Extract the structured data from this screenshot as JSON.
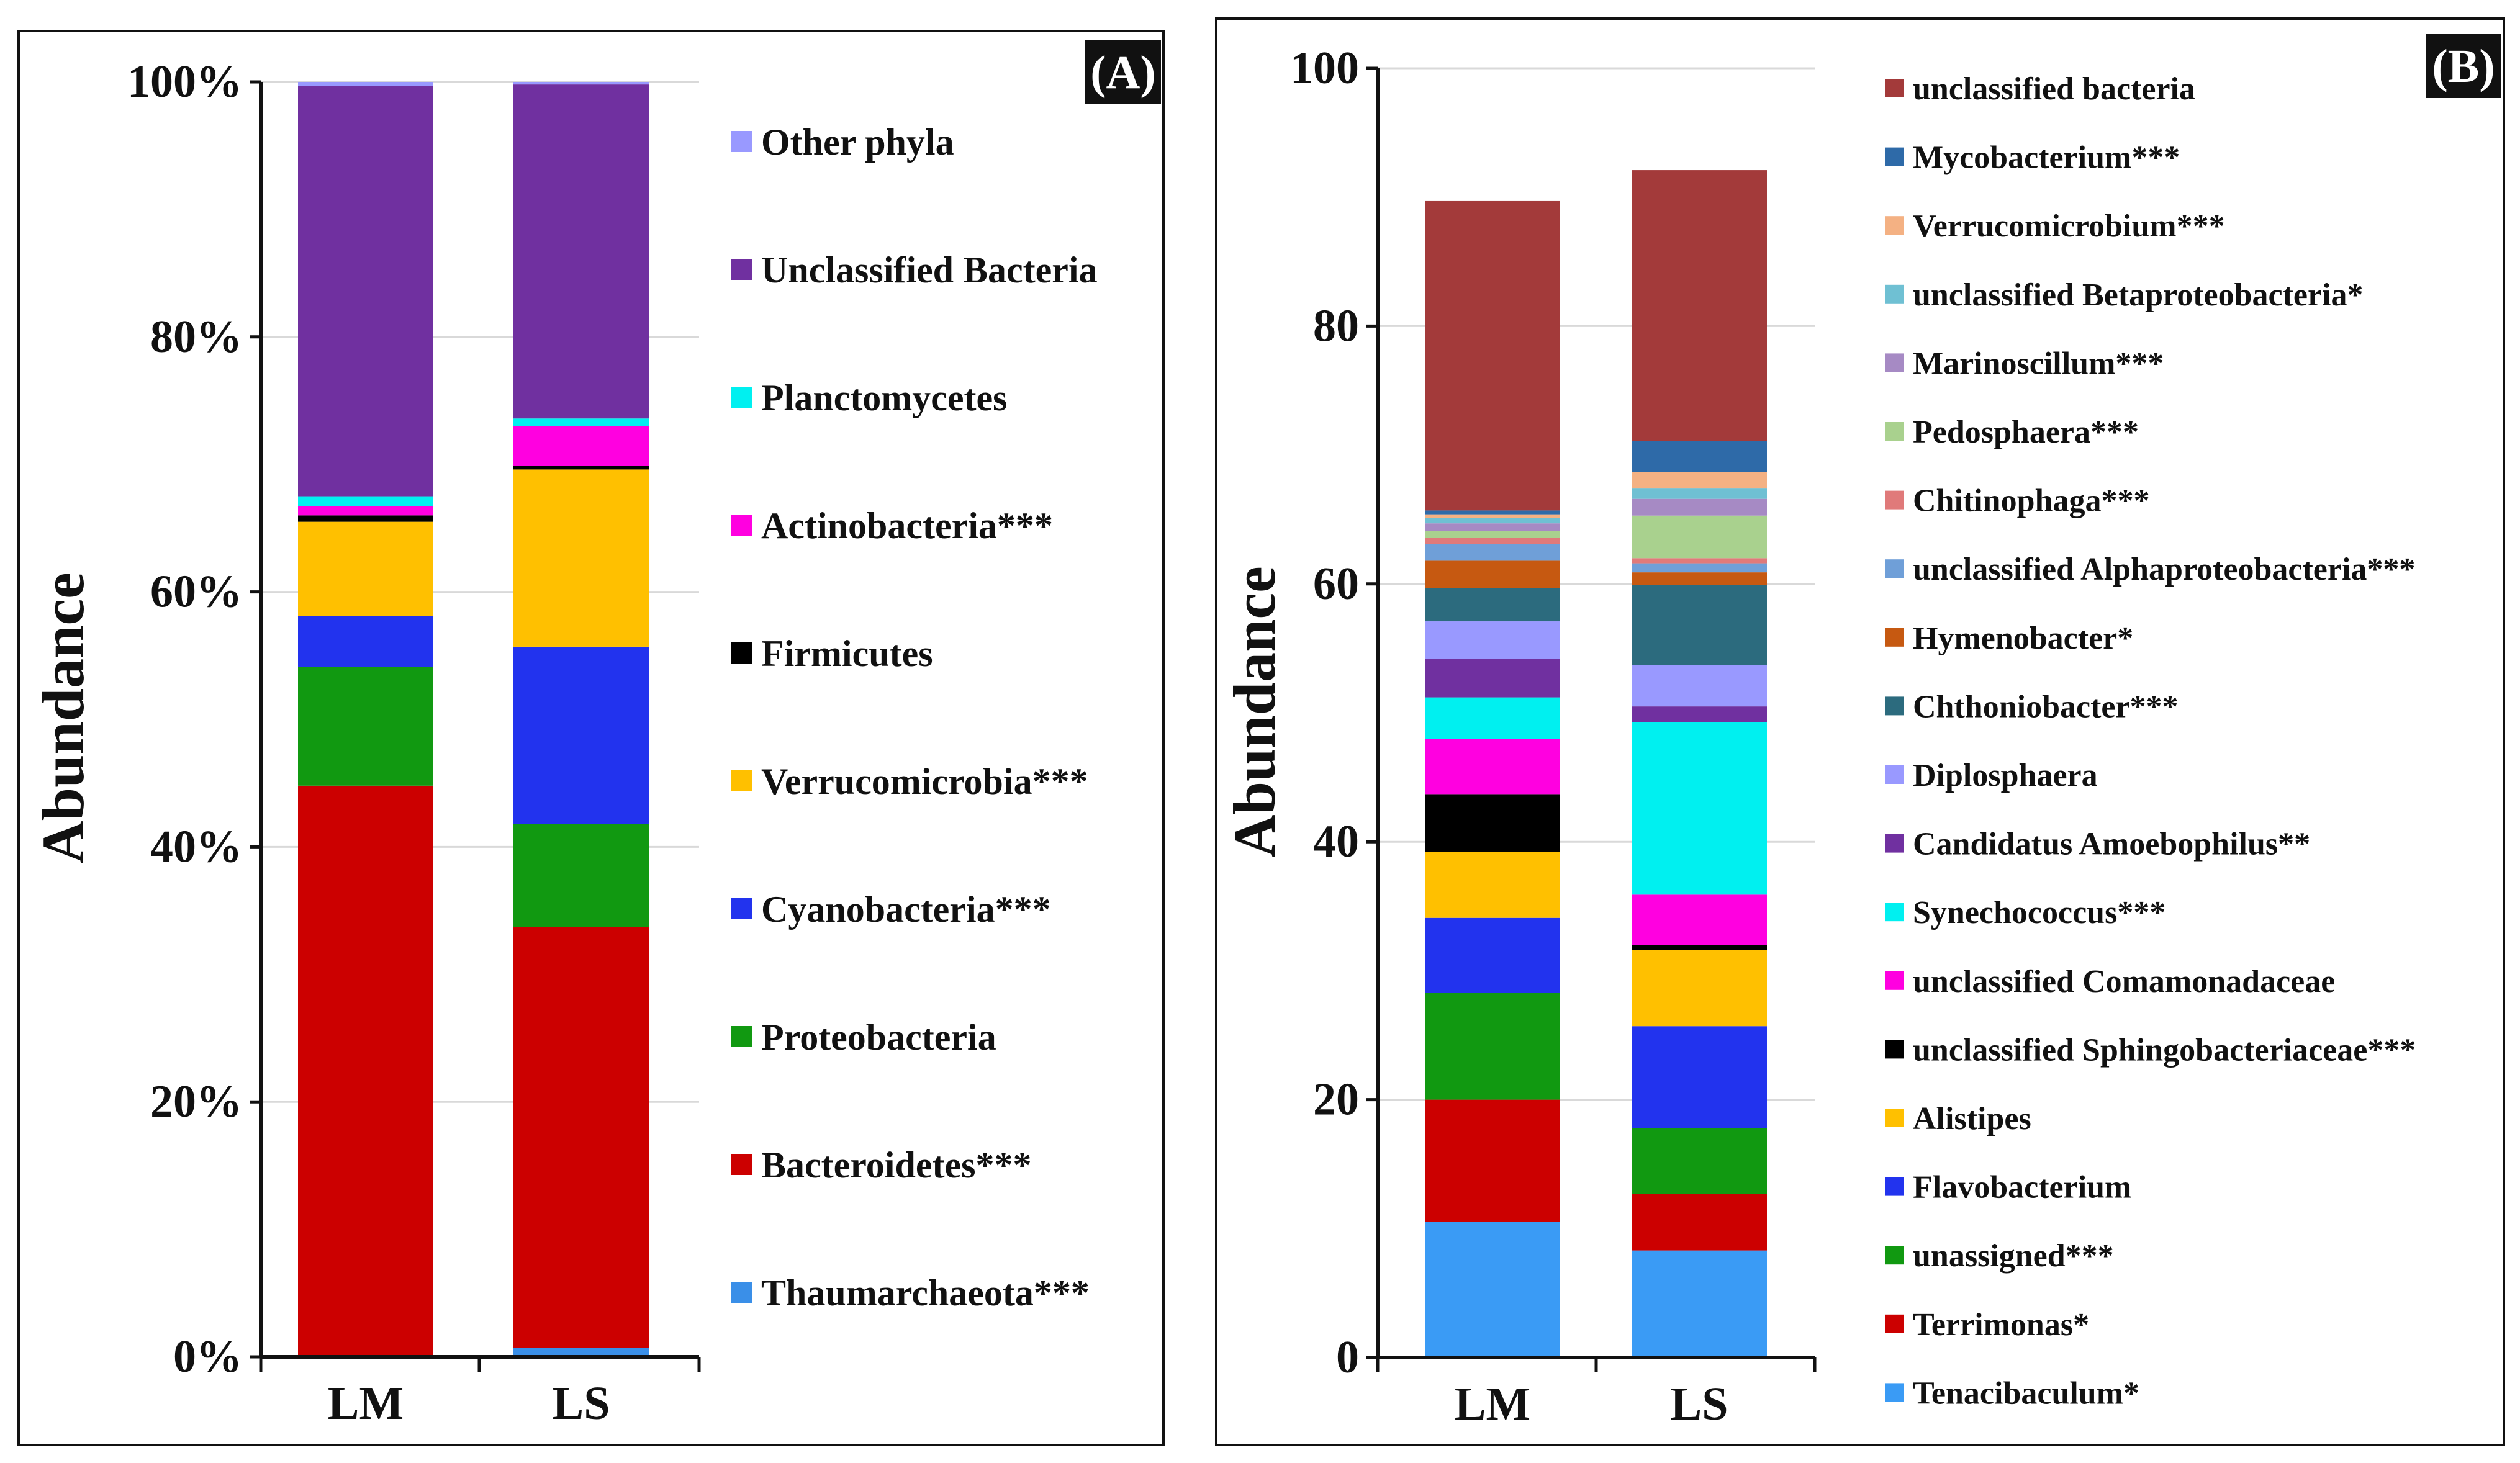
{
  "chart_data": [
    {
      "type": "bar",
      "stacked": true,
      "panel_label": "(A)",
      "ylabel": "Abundance",
      "y_ticks": [
        "0%",
        "20%",
        "40%",
        "60%",
        "80%",
        "100%"
      ],
      "ylim": [
        0,
        100
      ],
      "categories": [
        "LM",
        "LS"
      ],
      "series": [
        {
          "name": "Thaumarchaeota***",
          "color": "#3A8FE8",
          "values": [
            0.1,
            0.7
          ]
        },
        {
          "name": "Bacteroidetes***",
          "color": "#CC0000",
          "values": [
            44.7,
            33.0
          ]
        },
        {
          "name": "Proteobacteria",
          "color": "#119911",
          "values": [
            9.3,
            8.1
          ]
        },
        {
          "name": "Cyanobacteria***",
          "color": "#2233EE",
          "values": [
            4.0,
            13.9
          ]
        },
        {
          "name": "Verrucomicrobia***",
          "color": "#FFC000",
          "values": [
            7.4,
            13.9
          ]
        },
        {
          "name": "Firmicutes",
          "color": "#000000",
          "values": [
            0.5,
            0.3
          ]
        },
        {
          "name": "Actinobacteria***",
          "color": "#FF00E0",
          "values": [
            0.7,
            3.1
          ]
        },
        {
          "name": "Planctomycetes",
          "color": "#00F0F0",
          "values": [
            0.8,
            0.6
          ]
        },
        {
          "name": "Unclassified Bacteria",
          "color": "#7030A0",
          "values": [
            32.2,
            26.2
          ]
        },
        {
          "name": "Other phyla",
          "color": "#9999FF",
          "values": [
            0.3,
            0.2
          ]
        }
      ]
    },
    {
      "type": "bar",
      "stacked": true,
      "panel_label": "(B)",
      "ylabel": "Abundance",
      "y_ticks": [
        "0",
        "20",
        "40",
        "60",
        "80",
        "100"
      ],
      "ylim": [
        0,
        100
      ],
      "categories": [
        "LM",
        "LS"
      ],
      "series": [
        {
          "name": "Tenacibaculum*",
          "color": "#3A9BF5",
          "values": [
            10.5,
            8.3
          ]
        },
        {
          "name": "Terrimonas*",
          "color": "#CC0000",
          "values": [
            9.5,
            4.4
          ]
        },
        {
          "name": "unassigned***",
          "color": "#119911",
          "values": [
            8.3,
            5.1
          ]
        },
        {
          "name": "Flavobacterium",
          "color": "#2233EE",
          "values": [
            5.8,
            7.9
          ]
        },
        {
          "name": "Alistipes",
          "color": "#FFC000",
          "values": [
            5.1,
            5.9
          ]
        },
        {
          "name": "unclassified Sphingobacteriaceae***",
          "color": "#000000",
          "values": [
            4.5,
            0.4
          ]
        },
        {
          "name": "unclassified Comamonadaceae",
          "color": "#FF00E0",
          "values": [
            4.3,
            3.9
          ]
        },
        {
          "name": "Synechococcus***",
          "color": "#00F0F0",
          "values": [
            3.2,
            13.4
          ]
        },
        {
          "name": "Candidatus Amoebophilus**",
          "color": "#7030A0",
          "values": [
            3.0,
            1.2
          ]
        },
        {
          "name": "Diplosphaera",
          "color": "#9999FF",
          "values": [
            2.9,
            3.2
          ]
        },
        {
          "name": "Chthoniobacter***",
          "color": "#2C6B7E",
          "values": [
            2.6,
            6.2
          ]
        },
        {
          "name": "Hymenobacter*",
          "color": "#C65911",
          "values": [
            2.1,
            1.0
          ]
        },
        {
          "name": "unclassified Alphaproteobacteria***",
          "color": "#6F9FD8",
          "values": [
            1.3,
            0.7
          ]
        },
        {
          "name": "Chitinophaga***",
          "color": "#E07A7A",
          "values": [
            0.5,
            0.4
          ]
        },
        {
          "name": "Pedosphaera***",
          "color": "#A9D18E",
          "values": [
            0.5,
            3.3
          ]
        },
        {
          "name": "Marinoscillum***",
          "color": "#A68AC4",
          "values": [
            0.6,
            1.3
          ]
        },
        {
          "name": "unclassified Betaproteobacteria*",
          "color": "#6FC0D3",
          "values": [
            0.4,
            0.8
          ]
        },
        {
          "name": "Verrucomicrobium***",
          "color": "#F4B183",
          "values": [
            0.3,
            1.3
          ]
        },
        {
          "name": "Mycobacterium***",
          "color": "#2E6AA8",
          "values": [
            0.3,
            2.4
          ]
        },
        {
          "name": "unclassified bacteria",
          "color": "#A33A3A",
          "values": [
            24.0,
            21.0
          ]
        }
      ]
    }
  ]
}
